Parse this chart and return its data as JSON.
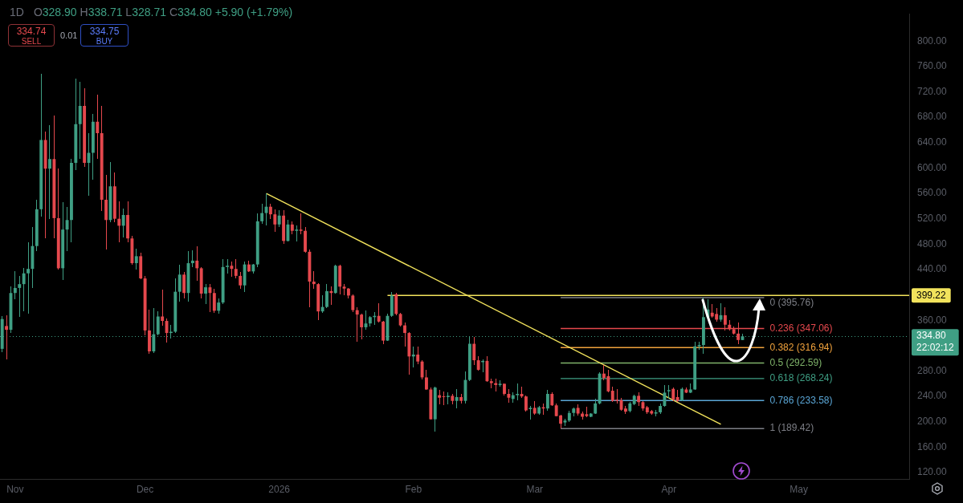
{
  "chart_data": {
    "type": "candlestick",
    "title": "1D",
    "subtitle": "O328.90 H338.71 L328.71 C334.80 +5.90 (+1.79%)",
    "x": [
      "2025-10-29",
      "2025-10-30",
      "2025-10-31",
      "2025-11-01",
      "2025-11-02",
      "2025-11-03",
      "2025-11-04",
      "2025-11-05",
      "2025-11-06",
      "2025-11-07",
      "2025-11-08",
      "2025-11-09",
      "2025-11-10",
      "2025-11-11",
      "2025-11-12",
      "2025-11-13",
      "2025-11-14",
      "2025-11-15",
      "2025-11-16",
      "2025-11-17",
      "2025-11-18",
      "2025-11-19",
      "2025-11-20",
      "2025-11-21",
      "2025-11-22",
      "2025-11-23",
      "2025-11-24",
      "2025-11-25",
      "2025-11-26",
      "2025-11-27",
      "2025-11-28",
      "2025-11-29",
      "2025-11-30",
      "2025-12-01",
      "2025-12-02",
      "2025-12-03",
      "2025-12-04",
      "2025-12-05",
      "2025-12-06",
      "2025-12-07",
      "2025-12-08",
      "2025-12-09",
      "2025-12-10",
      "2025-12-11",
      "2025-12-12",
      "2025-12-13",
      "2025-12-14",
      "2025-12-15",
      "2025-12-16",
      "2025-12-17",
      "2025-12-18",
      "2025-12-19",
      "2025-12-20",
      "2025-12-21",
      "2025-12-22",
      "2025-12-23",
      "2025-12-24",
      "2025-12-25",
      "2025-12-26",
      "2025-12-27",
      "2025-12-28",
      "2025-12-29",
      "2025-12-30",
      "2025-12-31",
      "2026-01-01",
      "2026-01-02",
      "2026-01-03",
      "2026-01-04",
      "2026-01-05",
      "2026-01-06",
      "2026-01-07",
      "2026-01-08",
      "2026-01-09",
      "2026-01-10",
      "2026-01-11",
      "2026-01-12",
      "2026-01-13",
      "2026-01-14",
      "2026-01-15",
      "2026-01-16",
      "2026-01-17",
      "2026-01-18",
      "2026-01-19",
      "2026-01-20",
      "2026-01-21",
      "2026-01-22",
      "2026-01-23",
      "2026-01-24",
      "2026-01-25",
      "2026-01-26",
      "2026-01-27",
      "2026-01-28",
      "2026-01-29",
      "2026-01-30",
      "2026-01-31",
      "2026-02-01",
      "2026-02-02",
      "2026-02-03",
      "2026-02-04",
      "2026-02-05",
      "2026-02-06",
      "2026-02-07",
      "2026-02-08",
      "2026-02-09",
      "2026-02-10",
      "2026-02-11",
      "2026-02-12",
      "2026-02-13",
      "2026-02-14",
      "2026-02-15",
      "2026-02-16",
      "2026-02-17",
      "2026-02-18",
      "2026-02-19",
      "2026-02-20",
      "2026-02-21",
      "2026-02-22",
      "2026-02-23",
      "2026-02-24",
      "2026-02-25",
      "2026-02-26",
      "2026-02-27",
      "2026-02-28",
      "2026-03-01",
      "2026-03-02",
      "2026-03-03",
      "2026-03-04",
      "2026-03-05",
      "2026-03-06",
      "2026-03-07",
      "2026-03-08",
      "2026-03-09",
      "2026-03-10",
      "2026-03-11",
      "2026-03-12",
      "2026-03-13",
      "2026-03-14",
      "2026-03-15",
      "2026-03-16",
      "2026-03-17",
      "2026-03-18",
      "2026-03-19",
      "2026-03-20",
      "2026-03-21",
      "2026-03-22",
      "2026-03-23",
      "2026-03-24",
      "2026-03-25",
      "2026-03-26",
      "2026-03-27",
      "2026-03-28",
      "2026-03-29",
      "2026-03-30",
      "2026-03-31",
      "2026-04-01",
      "2026-04-02",
      "2026-04-03",
      "2026-04-04",
      "2026-04-05",
      "2026-04-06",
      "2026-04-07",
      "2026-04-08",
      "2026-04-09",
      "2026-04-10",
      "2026-04-11",
      "2026-04-12",
      "2026-04-13",
      "2026-04-14",
      "2026-04-15",
      "2026-04-16",
      "2026-04-17",
      "2026-04-18"
    ],
    "ohlc": [
      [
        315,
        367,
        310,
        362
      ],
      [
        351,
        368,
        299,
        345
      ],
      [
        345,
        413,
        340,
        403
      ],
      [
        403,
        438,
        393,
        411
      ],
      [
        411,
        430,
        366,
        417
      ],
      [
        417,
        442,
        374,
        434
      ],
      [
        434,
        483,
        370,
        441
      ],
      [
        441,
        507,
        411,
        477
      ],
      [
        477,
        550,
        469,
        535
      ],
      [
        535,
        749,
        524,
        644
      ],
      [
        644,
        657,
        489,
        599
      ],
      [
        599,
        667,
        520,
        614
      ],
      [
        614,
        683,
        489,
        521
      ],
      [
        521,
        599,
        440,
        442
      ],
      [
        442,
        546,
        424,
        503
      ],
      [
        503,
        538,
        469,
        518
      ],
      [
        518,
        614,
        483,
        608
      ],
      [
        608,
        741,
        597,
        669
      ],
      [
        669,
        736,
        614,
        698
      ],
      [
        698,
        726,
        602,
        608
      ],
      [
        608,
        655,
        556,
        624
      ],
      [
        624,
        685,
        582,
        673
      ],
      [
        673,
        716,
        614,
        655
      ],
      [
        655,
        698,
        532,
        550
      ],
      [
        550,
        589,
        471,
        518
      ],
      [
        518,
        610,
        515,
        571
      ],
      [
        571,
        593,
        515,
        520
      ],
      [
        520,
        548,
        483,
        509
      ],
      [
        509,
        536,
        491,
        526
      ],
      [
        526,
        548,
        483,
        489
      ],
      [
        489,
        493,
        448,
        450
      ],
      [
        450,
        473,
        440,
        461
      ],
      [
        461,
        467,
        425,
        426
      ],
      [
        426,
        430,
        336,
        344
      ],
      [
        344,
        377,
        307,
        311
      ],
      [
        311,
        379,
        309,
        338
      ],
      [
        338,
        374,
        336,
        366
      ],
      [
        366,
        408,
        352,
        359
      ],
      [
        359,
        363,
        325,
        340
      ],
      [
        340,
        353,
        331,
        342
      ],
      [
        342,
        426,
        340,
        405
      ],
      [
        405,
        448,
        389,
        432
      ],
      [
        432,
        436,
        395,
        403
      ],
      [
        403,
        469,
        390,
        450
      ],
      [
        450,
        470,
        444,
        454
      ],
      [
        454,
        476,
        422,
        442
      ],
      [
        442,
        444,
        395,
        402
      ],
      [
        402,
        417,
        385,
        412
      ],
      [
        412,
        417,
        373,
        403
      ],
      [
        403,
        409,
        372,
        375
      ],
      [
        375,
        395,
        370,
        388
      ],
      [
        388,
        456,
        385,
        444
      ],
      [
        444,
        456,
        434,
        446
      ],
      [
        446,
        452,
        428,
        441
      ],
      [
        441,
        456,
        426,
        430
      ],
      [
        430,
        436,
        409,
        415
      ],
      [
        415,
        452,
        404,
        448
      ],
      [
        448,
        454,
        436,
        437
      ],
      [
        437,
        449,
        434,
        448
      ],
      [
        448,
        528,
        444,
        516
      ],
      [
        516,
        543,
        512,
        529
      ],
      [
        529,
        560,
        509,
        539
      ],
      [
        539,
        544,
        520,
        527
      ],
      [
        527,
        535,
        499,
        511
      ],
      [
        511,
        533,
        507,
        525
      ],
      [
        525,
        533,
        481,
        485
      ],
      [
        485,
        518,
        484,
        511
      ],
      [
        511,
        516,
        495,
        501
      ],
      [
        501,
        509,
        484,
        503
      ],
      [
        503,
        529,
        495,
        501
      ],
      [
        501,
        507,
        466,
        468
      ],
      [
        468,
        471,
        381,
        421
      ],
      [
        421,
        438,
        409,
        417
      ],
      [
        417,
        419,
        360,
        374
      ],
      [
        374,
        399,
        372,
        381
      ],
      [
        381,
        417,
        379,
        406
      ],
      [
        406,
        413,
        384,
        403
      ],
      [
        403,
        448,
        402,
        446
      ],
      [
        446,
        448,
        401,
        413
      ],
      [
        413,
        417,
        399,
        410
      ],
      [
        410,
        411,
        395,
        399
      ],
      [
        399,
        401,
        373,
        376
      ],
      [
        376,
        381,
        326,
        369
      ],
      [
        369,
        370,
        330,
        349
      ],
      [
        349,
        376,
        345,
        355
      ],
      [
        355,
        367,
        350,
        365
      ],
      [
        365,
        373,
        353,
        367
      ],
      [
        367,
        387,
        357,
        358
      ],
      [
        358,
        359,
        323,
        328
      ],
      [
        328,
        370,
        327,
        367
      ],
      [
        367,
        404,
        365,
        399
      ],
      [
        401,
        403,
        368,
        370
      ],
      [
        370,
        372,
        350,
        352
      ],
      [
        352,
        356,
        319,
        340
      ],
      [
        340,
        341,
        274,
        303
      ],
      [
        303,
        319,
        286,
        306
      ],
      [
        306,
        319,
        291,
        295
      ],
      [
        295,
        297,
        267,
        270
      ],
      [
        270,
        282,
        250,
        251
      ],
      [
        251,
        254,
        203,
        204
      ],
      [
        204,
        255,
        184,
        254
      ],
      [
        242,
        250,
        227,
        238
      ],
      [
        240,
        248,
        226,
        239
      ],
      [
        239,
        246,
        227,
        241
      ],
      [
        241,
        244,
        227,
        233
      ],
      [
        233,
        252,
        221,
        239
      ],
      [
        239,
        244,
        229,
        233
      ],
      [
        233,
        280,
        229,
        266
      ],
      [
        266,
        334,
        264,
        323
      ],
      [
        323,
        334,
        289,
        297
      ],
      [
        297,
        303,
        281,
        282
      ],
      [
        294,
        298,
        278,
        296
      ],
      [
        296,
        303,
        263,
        264
      ],
      [
        264,
        268,
        253,
        261
      ],
      [
        261,
        268,
        248,
        258
      ],
      [
        258,
        265,
        256,
        260
      ],
      [
        260,
        261,
        242,
        244
      ],
      [
        244,
        251,
        230,
        238
      ],
      [
        236,
        247,
        230,
        242
      ],
      [
        242,
        260,
        234,
        244
      ],
      [
        244,
        256,
        238,
        240
      ],
      [
        240,
        241,
        216,
        218
      ],
      [
        220,
        225,
        203,
        222
      ],
      [
        222,
        233,
        211,
        213
      ],
      [
        213,
        225,
        211,
        223
      ],
      [
        223,
        229,
        211,
        221
      ],
      [
        221,
        250,
        218,
        244
      ],
      [
        244,
        247,
        225,
        226
      ],
      [
        226,
        229,
        208,
        209
      ],
      [
        210,
        211,
        189.42,
        197
      ],
      [
        199,
        205,
        193,
        202
      ],
      [
        202,
        217,
        200,
        214
      ],
      [
        214,
        222,
        208,
        221
      ],
      [
        222,
        227,
        210,
        213
      ],
      [
        213,
        216,
        203,
        208
      ],
      [
        212,
        224,
        207,
        209
      ],
      [
        208,
        214,
        207,
        213
      ],
      [
        213,
        236,
        212,
        229
      ],
      [
        229,
        278,
        228,
        276
      ],
      [
        276,
        289,
        265,
        269
      ],
      [
        272,
        282,
        247,
        248
      ],
      [
        249,
        256,
        231,
        233
      ],
      [
        235,
        251,
        229,
        233
      ],
      [
        234,
        238,
        218,
        219
      ],
      [
        221,
        225,
        213,
        216
      ],
      [
        217,
        231,
        215,
        229
      ],
      [
        228,
        243,
        226,
        241
      ],
      [
        241,
        246,
        225,
        231
      ],
      [
        231,
        233,
        217,
        221
      ],
      [
        223,
        225,
        213,
        215
      ],
      [
        217,
        219,
        211,
        213
      ],
      [
        213,
        219,
        209,
        215
      ],
      [
        215,
        229,
        213,
        225
      ],
      [
        225,
        258,
        224,
        246
      ],
      [
        248,
        258,
        237,
        250
      ],
      [
        252,
        254,
        233,
        235
      ],
      [
        239,
        250,
        231,
        233
      ],
      [
        234,
        254,
        233,
        252
      ],
      [
        251,
        254,
        245,
        246
      ],
      [
        246,
        260,
        245,
        251
      ],
      [
        251,
        326,
        250,
        319
      ],
      [
        319,
        326,
        313,
        321
      ],
      [
        321,
        395.76,
        307,
        365
      ],
      [
        365,
        393,
        364,
        377
      ],
      [
        372,
        385,
        364,
        366
      ],
      [
        370,
        379,
        358,
        361
      ],
      [
        361,
        387,
        358,
        368
      ],
      [
        368,
        381,
        344,
        353
      ],
      [
        353,
        360,
        344,
        346
      ],
      [
        346,
        350,
        337,
        339
      ],
      [
        339,
        356,
        323,
        328.9
      ],
      [
        328.9,
        338.71,
        328.71,
        334.8
      ]
    ],
    "colors": [
      "#3f9f84",
      "#e5484d",
      "#3f9f84",
      "#3f9f84",
      "#3f9f84",
      "#3f9f84",
      "#3f9f84",
      "#3f9f84",
      "#3f9f84",
      "#3f9f84",
      "#e5484d",
      "#3f9f84",
      "#e5484d",
      "#e5484d",
      "#3f9f84",
      "#3f9f84",
      "#3f9f84",
      "#3f9f84",
      "#3f9f84",
      "#e5484d",
      "#3f9f84",
      "#3f9f84",
      "#e5484d",
      "#e5484d",
      "#e5484d",
      "#3f9f84",
      "#e5484d",
      "#e5484d",
      "#3f9f84",
      "#e5484d",
      "#e5484d",
      "#3f9f84",
      "#e5484d",
      "#e5484d",
      "#e5484d",
      "#3f9f84",
      "#3f9f84",
      "#e5484d",
      "#e5484d",
      "#3f9f84",
      "#3f9f84",
      "#3f9f84",
      "#e5484d",
      "#3f9f84",
      "#3f9f84",
      "#e5484d",
      "#e5484d",
      "#3f9f84",
      "#e5484d",
      "#e5484d",
      "#3f9f84",
      "#3f9f84",
      "#3f9f84",
      "#e5484d",
      "#e5484d",
      "#e5484d",
      "#3f9f84",
      "#e5484d",
      "#3f9f84",
      "#3f9f84",
      "#3f9f84",
      "#3f9f84",
      "#e5484d",
      "#e5484d",
      "#3f9f84",
      "#e5484d",
      "#3f9f84",
      "#e5484d",
      "#3f9f84",
      "#e5484d",
      "#e5484d",
      "#e5484d",
      "#e5484d",
      "#e5484d",
      "#3f9f84",
      "#3f9f84",
      "#e5484d",
      "#3f9f84",
      "#e5484d",
      "#e5484d",
      "#e5484d",
      "#e5484d",
      "#e5484d",
      "#e5484d",
      "#3f9f84",
      "#3f9f84",
      "#3f9f84",
      "#e5484d",
      "#e5484d",
      "#3f9f84",
      "#3f9f84",
      "#e5484d",
      "#e5484d",
      "#e5484d",
      "#e5484d",
      "#3f9f84",
      "#e5484d",
      "#e5484d",
      "#e5484d",
      "#e5484d",
      "#3f9f84",
      "#e5484d",
      "#e5484d",
      "#3f9f84",
      "#e5484d",
      "#3f9f84",
      "#e5484d",
      "#3f9f84",
      "#3f9f84",
      "#e5484d",
      "#e5484d",
      "#3f9f84",
      "#e5484d",
      "#e5484d",
      "#e5484d",
      "#3f9f84",
      "#e5484d",
      "#e5484d",
      "#3f9f84",
      "#3f9f84",
      "#e5484d",
      "#e5484d",
      "#3f9f84",
      "#e5484d",
      "#3f9f84",
      "#e5484d",
      "#3f9f84",
      "#e5484d",
      "#e5484d",
      "#e5484d",
      "#3f9f84",
      "#3f9f84",
      "#3f9f84",
      "#e5484d",
      "#e5484d",
      "#e5484d",
      "#3f9f84",
      "#3f9f84",
      "#3f9f84",
      "#e5484d",
      "#e5484d",
      "#e5484d",
      "#e5484d",
      "#e5484d",
      "#e5484d",
      "#3f9f84",
      "#3f9f84",
      "#e5484d",
      "#e5484d",
      "#e5484d",
      "#e5484d",
      "#3f9f84",
      "#3f9f84",
      "#3f9f84",
      "#3f9f84",
      "#e5484d",
      "#e5484d",
      "#3f9f84",
      "#e5484d",
      "#3f9f84",
      "#3f9f84",
      "#3f9f84",
      "#3f9f84",
      "#3f9f84",
      "#e5484d",
      "#e5484d",
      "#3f9f84",
      "#e5484d",
      "#e5484d",
      "#e5484d",
      "#e5484d",
      "#3f9f84"
    ],
    "series": [
      {
        "type": "line",
        "x": [
          "2025-12-29",
          "2026-04-13"
        ],
        "values": [
          560,
          196
        ],
        "color": "#f2e35c"
      },
      {
        "type": "line",
        "x": [
          "2026-01-26",
          "2026-05-26T12:00"
        ],
        "values": [
          399.22,
          399.22
        ],
        "color": "#f2e35c"
      },
      {
        "type": "line",
        "name": "0 (395.76)",
        "x": [
          "2026-03-07",
          "2026-04-23"
        ],
        "values": [
          395.76,
          395.76
        ],
        "color": "#7d7f86"
      },
      {
        "type": "line",
        "name": "0.236 (347.06)",
        "x": [
          "2026-03-07",
          "2026-04-23"
        ],
        "values": [
          347.06,
          347.06
        ],
        "color": "#e5484d"
      },
      {
        "type": "line",
        "name": "0.382 (316.94)",
        "x": [
          "2026-03-07",
          "2026-04-23"
        ],
        "values": [
          316.94,
          316.94
        ],
        "color": "#f0a23c"
      },
      {
        "type": "line",
        "name": "0.5 (292.59)",
        "x": [
          "2026-03-07",
          "2026-04-23"
        ],
        "values": [
          292.59,
          292.59
        ],
        "color": "#7fb36a"
      },
      {
        "type": "line",
        "name": "0.618 (268.24)",
        "x": [
          "2026-03-07",
          "2026-04-23"
        ],
        "values": [
          268.24,
          268.24
        ],
        "color": "#3f9f84"
      },
      {
        "type": "line",
        "name": "0.786 (233.58)",
        "x": [
          "2026-03-07",
          "2026-04-23"
        ],
        "values": [
          233.58,
          233.58
        ],
        "color": "#5aa6d6"
      },
      {
        "type": "line",
        "name": "1 (189.42)",
        "x": [
          "2026-03-07",
          "2026-04-23"
        ],
        "values": [
          189.42,
          189.42
        ],
        "color": "#7d7f86"
      }
    ],
    "xlim": [
      "2025-10-28T12:00",
      "2026-05-26T12:00"
    ],
    "xticks": [
      {
        "value": "2025-11-01",
        "label": "Nov"
      },
      {
        "value": "2025-12-01",
        "label": "Dec"
      },
      {
        "value": "2026-01-01",
        "label": "2026"
      },
      {
        "value": "2026-02-01",
        "label": "Feb"
      },
      {
        "value": "2026-03-01",
        "label": "Mar"
      },
      {
        "value": "2026-04-01",
        "label": "Apr"
      },
      {
        "value": "2026-05-01",
        "label": "May"
      }
    ],
    "ylim": [
      110,
      843
    ],
    "yticks": [
      {
        "value": 120,
        "label": "120.00"
      },
      {
        "value": 160,
        "label": "160.00"
      },
      {
        "value": 200,
        "label": "200.00"
      },
      {
        "value": 240,
        "label": "240.00"
      },
      {
        "value": 280,
        "label": "280.00"
      },
      {
        "value": 360,
        "label": "360.00"
      },
      {
        "value": 440,
        "label": "440.00"
      },
      {
        "value": 480,
        "label": "480.00"
      },
      {
        "value": 520,
        "label": "520.00"
      },
      {
        "value": 560,
        "label": "560.00"
      },
      {
        "value": 600,
        "label": "600.00"
      },
      {
        "value": 640,
        "label": "640.00"
      },
      {
        "value": 680,
        "label": "680.00"
      },
      {
        "value": 720,
        "label": "720.00"
      },
      {
        "value": 760,
        "label": "760.00"
      },
      {
        "value": 800,
        "label": "800.00"
      }
    ],
    "ref_lines": [
      {
        "axis": "y",
        "value": 334.8,
        "label": "334.80",
        "color": "#3f9f84",
        "line_style": "dotted"
      }
    ],
    "annotations": [
      "334.74",
      "SELL",
      "0.01",
      "334.75",
      "BUY",
      {
        "text": "399.22",
        "x": "2026-05-26T12:00",
        "y": 399.22
      },
      {
        "text": "22:02:12",
        "x": "2026-05-26T12:00",
        "y": 334.8
      }
    ]
  }
}
